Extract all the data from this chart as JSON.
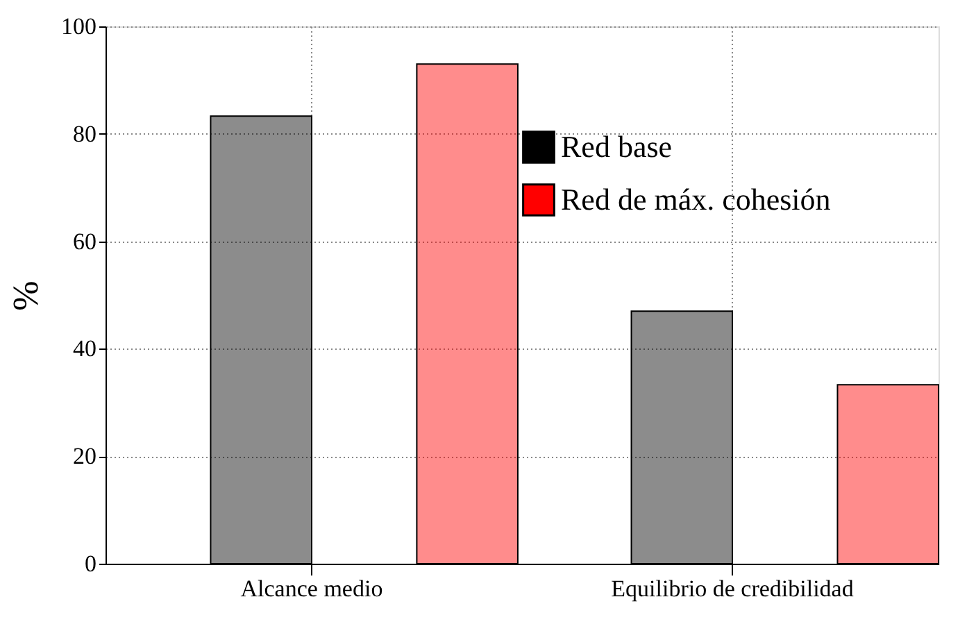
{
  "chart_data": {
    "type": "bar",
    "ylabel": "%",
    "categories": [
      "Alcance medio",
      "Equilibrio de credibilidad"
    ],
    "series": [
      {
        "name": "Red base",
        "color": "#000000",
        "values": [
          83.3,
          47
        ]
      },
      {
        "name": "Red de máx. cohesión",
        "color": "#ff0000",
        "values": [
          93,
          33.3
        ]
      }
    ],
    "ylim": [
      0,
      100
    ],
    "yticks": [
      0,
      20,
      40,
      60,
      80,
      100
    ],
    "grid": true,
    "legend": "right"
  }
}
